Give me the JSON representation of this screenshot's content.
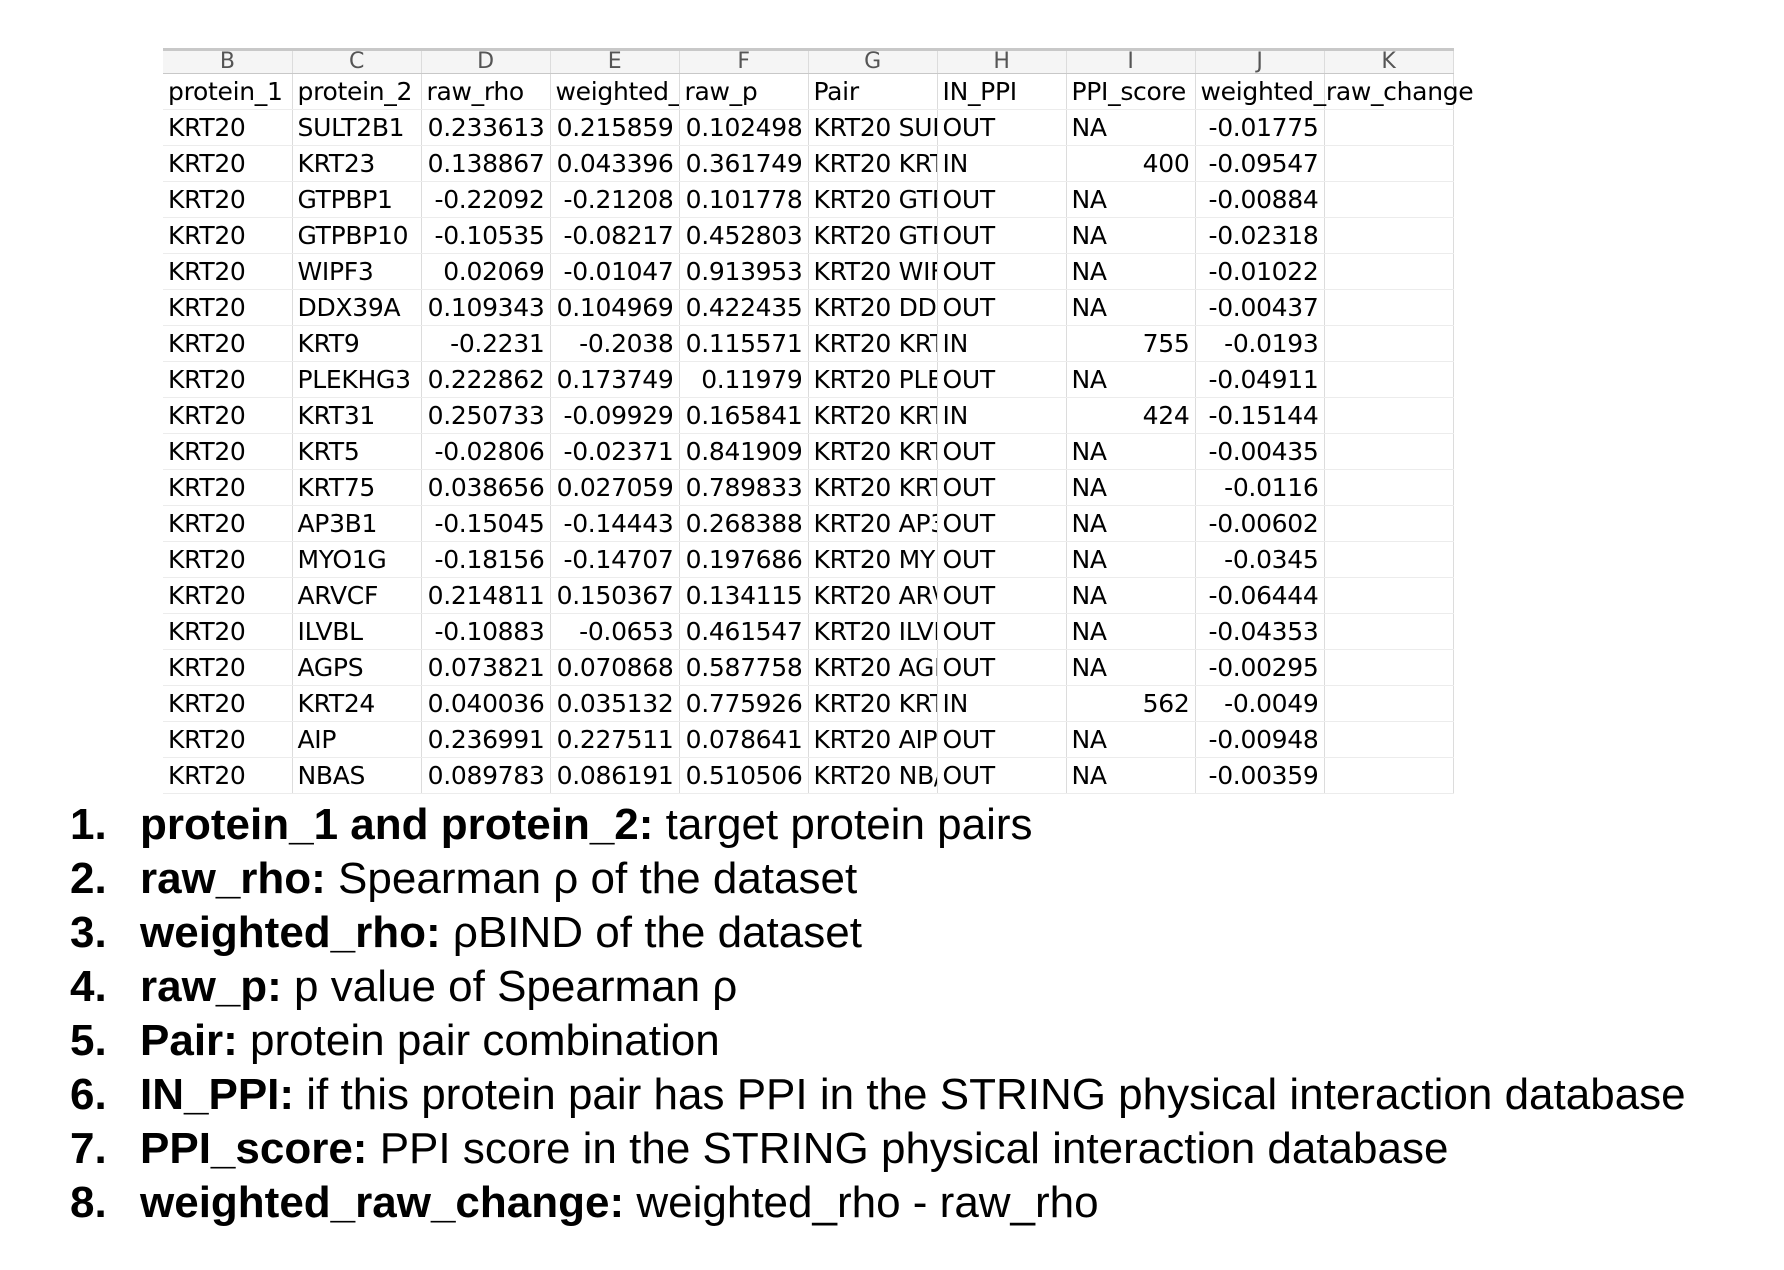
{
  "spreadsheet": {
    "column_letters": [
      "B",
      "C",
      "D",
      "E",
      "F",
      "G",
      "H",
      "I",
      "J",
      "K"
    ],
    "headers": [
      "protein_1",
      "protein_2",
      "raw_rho",
      "weighted_r",
      "raw_p",
      "Pair",
      "IN_PPI",
      "PPI_score",
      "weighted_raw_change",
      ""
    ],
    "rows": [
      [
        "KRT20",
        "SULT2B1",
        "0.233613",
        "0.215859",
        "0.102498",
        "KRT20 SUL",
        "OUT",
        "NA",
        "-0.01775",
        ""
      ],
      [
        "KRT20",
        "KRT23",
        "0.138867",
        "0.043396",
        "0.361749",
        "KRT20 KRT",
        "IN",
        "400",
        "-0.09547",
        ""
      ],
      [
        "KRT20",
        "GTPBP1",
        "-0.22092",
        "-0.21208",
        "0.101778",
        "KRT20 GTF",
        "OUT",
        "NA",
        "-0.00884",
        ""
      ],
      [
        "KRT20",
        "GTPBP10",
        "-0.10535",
        "-0.08217",
        "0.452803",
        "KRT20 GTF",
        "OUT",
        "NA",
        "-0.02318",
        ""
      ],
      [
        "KRT20",
        "WIPF3",
        "0.02069",
        "-0.01047",
        "0.913953",
        "KRT20 WIF",
        "OUT",
        "NA",
        "-0.01022",
        ""
      ],
      [
        "KRT20",
        "DDX39A",
        "0.109343",
        "0.104969",
        "0.422435",
        "KRT20 DD:",
        "OUT",
        "NA",
        "-0.00437",
        ""
      ],
      [
        "KRT20",
        "KRT9",
        "-0.2231",
        "-0.2038",
        "0.115571",
        "KRT20 KRT",
        "IN",
        "755",
        "-0.0193",
        ""
      ],
      [
        "KRT20",
        "PLEKHG3",
        "0.222862",
        "0.173749",
        "0.11979",
        "KRT20 PLE",
        "OUT",
        "NA",
        "-0.04911",
        ""
      ],
      [
        "KRT20",
        "KRT31",
        "0.250733",
        "-0.09929",
        "0.165841",
        "KRT20 KRT",
        "IN",
        "424",
        "-0.15144",
        ""
      ],
      [
        "KRT20",
        "KRT5",
        "-0.02806",
        "-0.02371",
        "0.841909",
        "KRT20 KRT",
        "OUT",
        "NA",
        "-0.00435",
        ""
      ],
      [
        "KRT20",
        "KRT75",
        "0.038656",
        "0.027059",
        "0.789833",
        "KRT20 KRT",
        "OUT",
        "NA",
        "-0.0116",
        ""
      ],
      [
        "KRT20",
        "AP3B1",
        "-0.15045",
        "-0.14443",
        "0.268388",
        "KRT20 AP3",
        "OUT",
        "NA",
        "-0.00602",
        ""
      ],
      [
        "KRT20",
        "MYO1G",
        "-0.18156",
        "-0.14707",
        "0.197686",
        "KRT20 MY(",
        "OUT",
        "NA",
        "-0.0345",
        ""
      ],
      [
        "KRT20",
        "ARVCF",
        "0.214811",
        "0.150367",
        "0.134115",
        "KRT20 AR\\",
        "OUT",
        "NA",
        "-0.06444",
        ""
      ],
      [
        "KRT20",
        "ILVBL",
        "-0.10883",
        "-0.0653",
        "0.461547",
        "KRT20 ILVE",
        "OUT",
        "NA",
        "-0.04353",
        ""
      ],
      [
        "KRT20",
        "AGPS",
        "0.073821",
        "0.070868",
        "0.587758",
        "KRT20 AGF",
        "OUT",
        "NA",
        "-0.00295",
        ""
      ],
      [
        "KRT20",
        "KRT24",
        "0.040036",
        "0.035132",
        "0.775926",
        "KRT20 KRT",
        "IN",
        "562",
        "-0.0049",
        ""
      ],
      [
        "KRT20",
        "AIP",
        "0.236991",
        "0.227511",
        "0.078641",
        "KRT20 AIP",
        "OUT",
        "NA",
        "-0.00948",
        ""
      ],
      [
        "KRT20",
        "NBAS",
        "0.089783",
        "0.086191",
        "0.510506",
        "KRT20 NB/",
        "OUT",
        "NA",
        "-0.00359",
        ""
      ]
    ]
  },
  "notes": [
    {
      "index": "1.",
      "term": "protein_1 and protein_2:",
      "text": " target protein pairs"
    },
    {
      "index": "2.",
      "term": "raw_rho:",
      "text": " Spearman ρ of the dataset"
    },
    {
      "index": "3.",
      "term": "weighted_rho:",
      "text": " ρBIND of the dataset"
    },
    {
      "index": "4.",
      "term": "raw_p:",
      "text": " p value of Spearman ρ"
    },
    {
      "index": "5.",
      "term": "Pair:",
      "text": " protein pair combination"
    },
    {
      "index": "6.",
      "term": "IN_PPI:",
      "text": " if this protein pair has PPI in the STRING physical interaction database"
    },
    {
      "index": "7.",
      "term": "PPI_score:",
      "text": " PPI score in the STRING physical interaction database"
    },
    {
      "index": "8.",
      "term": "weighted_raw_change:",
      "text": " weighted_rho - raw_rho"
    }
  ]
}
